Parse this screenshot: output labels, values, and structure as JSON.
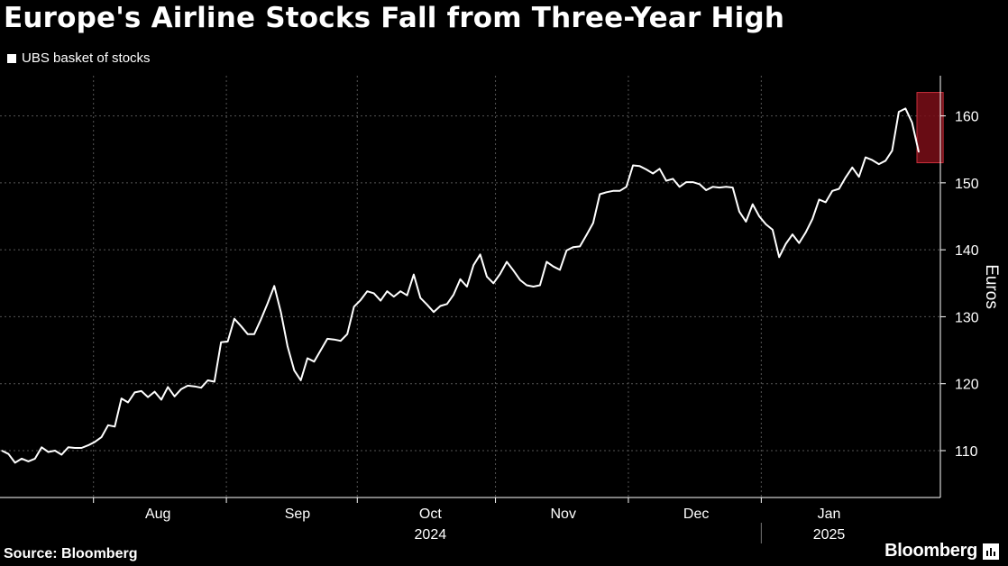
{
  "header": {
    "title": "Europe's Airline Stocks Fall from Three-Year High"
  },
  "footer": {
    "source": "Source: Bloomberg",
    "brand": "Bloomberg"
  },
  "colors": {
    "background": "#000000",
    "line": "#ffffff",
    "grid": "#555555",
    "highlight_fill": "#7a0e18",
    "highlight_stroke": "#c8303c"
  },
  "chart_data": {
    "type": "line",
    "title": "Europe's Airline Stocks Fall from Three-Year High",
    "xlabel": "",
    "ylabel": "Euros",
    "ylim": [
      103,
      166
    ],
    "yticks": [
      110,
      120,
      130,
      140,
      150,
      160
    ],
    "y_axis_side": "right",
    "grid": true,
    "legend_placement": "top-left",
    "x_tick_labels": [
      "Aug",
      "Sep",
      "Oct",
      "Nov",
      "Dec",
      "Jan"
    ],
    "x_year_labels": [
      {
        "label": "2024",
        "under": "Oct"
      },
      {
        "label": "2025",
        "under": "Jan"
      }
    ],
    "series": [
      {
        "name": "UBS basket of stocks",
        "values": [
          110.0,
          109.5,
          108.2,
          108.8,
          108.4,
          108.8,
          110.5,
          109.8,
          110.0,
          109.4,
          110.5,
          110.4,
          110.4,
          110.8,
          111.3,
          112.0,
          113.8,
          113.6,
          117.8,
          117.2,
          118.7,
          118.9,
          118.0,
          118.8,
          117.6,
          119.5,
          118.1,
          119.2,
          119.7,
          119.6,
          119.4,
          120.5,
          120.3,
          126.2,
          126.3,
          129.7,
          128.6,
          127.4,
          127.4,
          129.6,
          132.0,
          134.6,
          130.7,
          125.6,
          122.0,
          120.5,
          123.8,
          123.3,
          125.0,
          126.7,
          126.6,
          126.4,
          127.4,
          131.5,
          132.5,
          133.8,
          133.5,
          132.4,
          133.8,
          133.0,
          133.8,
          133.2,
          136.3,
          132.8,
          131.8,
          130.7,
          131.6,
          131.9,
          133.3,
          135.6,
          134.5,
          137.7,
          139.3,
          136.0,
          135.0,
          136.4,
          138.2,
          136.9,
          135.5,
          134.7,
          134.5,
          134.7,
          138.2,
          137.5,
          137.0,
          139.9,
          140.4,
          140.5,
          142.2,
          144.0,
          148.3,
          148.6,
          148.8,
          148.8,
          149.4,
          152.6,
          152.5,
          152.0,
          151.4,
          152.1,
          150.3,
          150.6,
          149.4,
          150.1,
          150.1,
          149.8,
          148.9,
          149.4,
          149.3,
          149.4,
          149.3,
          145.7,
          144.2,
          146.8,
          145.0,
          143.8,
          143.0,
          138.9,
          140.9,
          142.3,
          141.0,
          142.6,
          144.6,
          147.5,
          147.1,
          148.8,
          149.1,
          150.8,
          152.3,
          150.9,
          153.8,
          153.4,
          152.8,
          153.3,
          154.8,
          160.6,
          161.1,
          159.0,
          154.6
        ]
      }
    ],
    "highlight": {
      "from_index": 138,
      "to_index": 141,
      "y_range": [
        153.0,
        163.5
      ]
    }
  }
}
